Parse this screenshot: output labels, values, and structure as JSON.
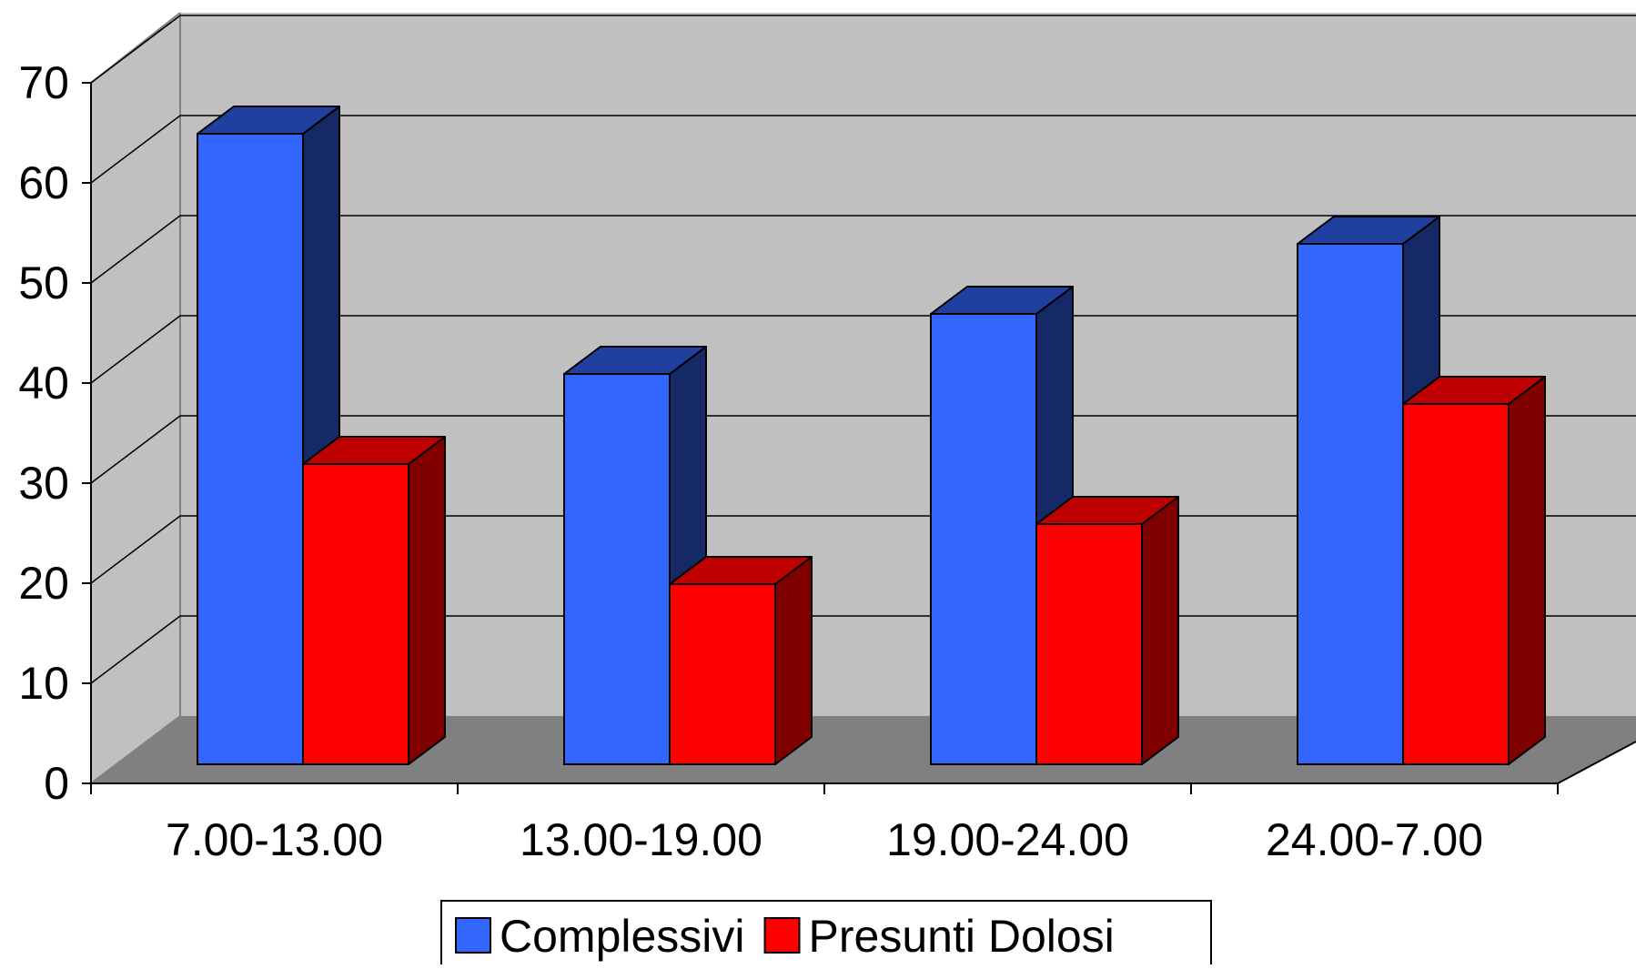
{
  "chart_data": {
    "type": "bar",
    "title": "",
    "xlabel": "",
    "ylabel": "",
    "categories": [
      "7.00-13.00",
      "13.00-19.00",
      "19.00-24.00",
      "24.00-7.00"
    ],
    "series": [
      {
        "name": "Complessivi",
        "values": [
          63,
          39,
          45,
          52
        ],
        "color": "#3366ff"
      },
      {
        "name": "Presunti Dolosi",
        "values": [
          30,
          18,
          24,
          36
        ],
        "color": "#ff0000"
      }
    ],
    "ylim": [
      0,
      70
    ],
    "yticks": [
      0,
      10,
      20,
      30,
      40,
      50,
      60,
      70
    ],
    "grid": true,
    "legend": "bottom",
    "style": "3d-clustered-column"
  }
}
